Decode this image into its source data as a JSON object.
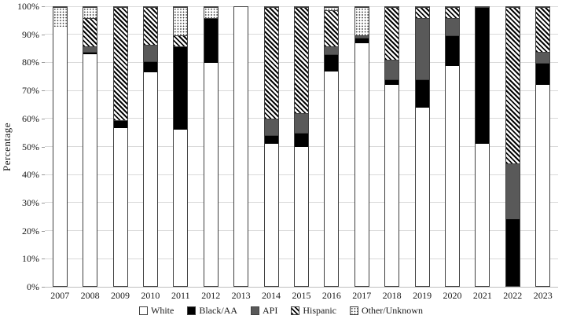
{
  "chart_data": {
    "type": "bar",
    "stacked": true,
    "orientation": "vertical",
    "title": "",
    "xlabel": "",
    "ylabel": "Percentage",
    "ylim": [
      0,
      100
    ],
    "grid": true,
    "legend_position": "bottom",
    "yticks": [
      "0%",
      "10%",
      "20%",
      "30%",
      "40%",
      "50%",
      "60%",
      "70%",
      "80%",
      "90%",
      "100%"
    ],
    "categories": [
      "2007",
      "2008",
      "2009",
      "2010",
      "2011",
      "2012",
      "2013",
      "2014",
      "2015",
      "2016",
      "2017",
      "2018",
      "2019",
      "2020",
      "2021",
      "2022",
      "2023"
    ],
    "series": [
      {
        "name": "White",
        "pattern": "white",
        "swatch": "empty-square",
        "values": [
          93,
          83,
          56.5,
          76.5,
          56,
          80,
          100,
          51,
          50,
          77,
          87,
          72,
          64,
          79,
          51,
          0,
          72
        ]
      },
      {
        "name": "Black/AA",
        "pattern": "black",
        "swatch": "black-square",
        "values": [
          0,
          1,
          3,
          4,
          30,
          16,
          0,
          3,
          5,
          6,
          2,
          2,
          10,
          11,
          49,
          24,
          8
        ]
      },
      {
        "name": "API",
        "pattern": "gray",
        "swatch": "gray-square",
        "values": [
          0,
          2,
          0,
          6,
          0,
          0,
          0,
          6,
          7,
          3,
          1,
          7,
          22,
          6,
          0,
          20,
          4
        ]
      },
      {
        "name": "Hispanic",
        "pattern": "hatch",
        "swatch": "diagonal-hatch-square",
        "values": [
          0,
          10,
          40.5,
          13.5,
          4,
          0,
          0,
          40,
          38,
          13,
          0,
          19,
          4,
          4,
          0,
          56,
          16
        ]
      },
      {
        "name": "Other/Unknown",
        "pattern": "dots",
        "swatch": "dotted-square",
        "values": [
          7,
          4,
          0,
          0,
          10,
          4,
          0,
          0,
          0,
          1,
          10,
          0,
          0,
          0,
          0,
          0,
          0
        ]
      }
    ]
  },
  "colors": {
    "background": "#ffffff",
    "gridline": "#d9d9d9",
    "bar_outline": "#404040",
    "black_fill": "#000000",
    "gray_fill": "#595959",
    "text": "#1a1a1a"
  }
}
